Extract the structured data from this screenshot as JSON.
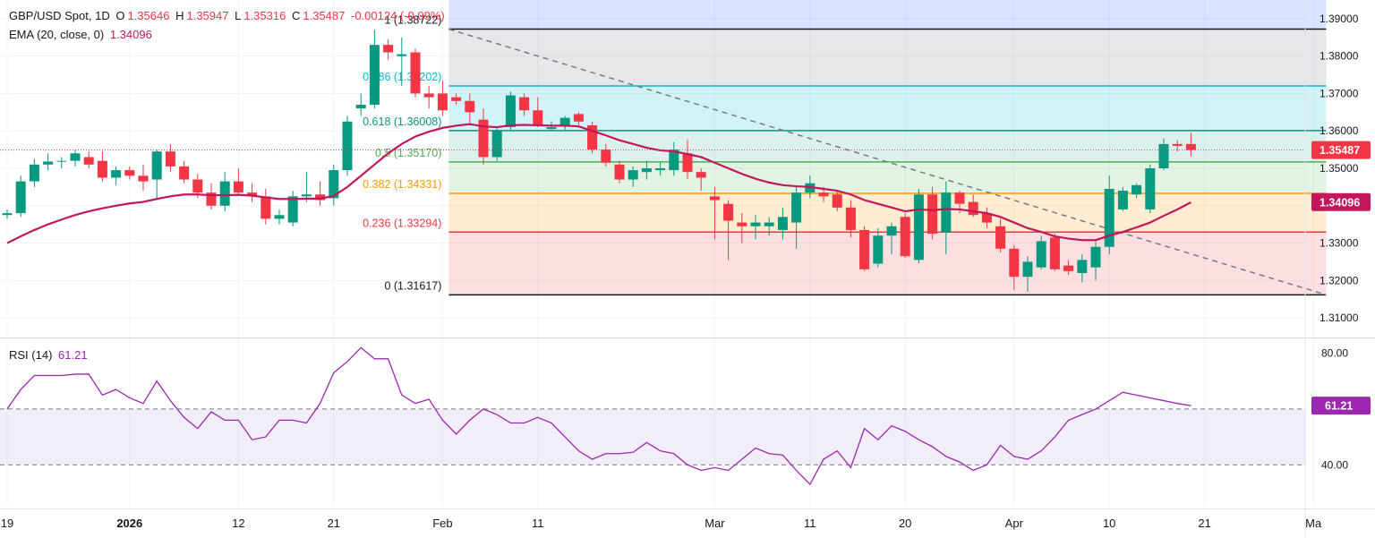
{
  "header": {
    "symbol": "GBP/USD Spot, 1D",
    "open_label": "O",
    "open": "1.35646",
    "high_label": "H",
    "high": "1.35947",
    "low_label": "L",
    "low": "1.35316",
    "close_label": "C",
    "close": "1.35487",
    "change": "-0.00124 (-0.09%)"
  },
  "ema_legend": {
    "label": "EMA (20, close, 0)",
    "value": "1.34096"
  },
  "rsi_legend": {
    "label": "RSI (14)",
    "value": "61.21"
  },
  "colors": {
    "up": "#089981",
    "down": "#f23645",
    "ema": "#c2185b",
    "rsi": "#9c27b0",
    "grid": "#f0f3fa",
    "fib_0": "#131722",
    "fib_236": "#f23645",
    "fib_382": "#ff9800",
    "fib_5": "#4caf50",
    "fib_618": "#089981",
    "fib_786": "#00bcd4",
    "fib_1": "#131722"
  },
  "chart_data": [
    {
      "type": "candlestick",
      "name": "price",
      "ylim": [
        1.305,
        1.395
      ],
      "yticks": [
        "1.39000",
        "1.38000",
        "1.37000",
        "1.36000",
        "1.35000",
        "1.34000",
        "1.33000",
        "1.32000",
        "1.31000"
      ],
      "ytick_values": [
        1.39,
        1.38,
        1.37,
        1.36,
        1.35,
        1.34,
        1.33,
        1.32,
        1.31
      ],
      "xticks": [
        {
          "label": "19",
          "i": 0
        },
        {
          "label": "2026",
          "i": 9
        },
        {
          "label": "12",
          "i": 17
        },
        {
          "label": "21",
          "i": 24
        },
        {
          "label": "Feb",
          "i": 32
        },
        {
          "label": "11",
          "i": 39
        },
        {
          "label": "Mar",
          "i": 52
        },
        {
          "label": "11",
          "i": 59
        },
        {
          "label": "20",
          "i": 66
        },
        {
          "label": "Apr",
          "i": 74
        },
        {
          "label": "10",
          "i": 81
        },
        {
          "label": "21",
          "i": 88
        },
        {
          "label": "Ma",
          "i": 96
        }
      ],
      "price_labels": {
        "close": {
          "label": "1.35487",
          "value": 1.35487
        },
        "ema": {
          "label": "1.34096",
          "value": 1.34096
        }
      },
      "candles": [
        [
          1.3375,
          1.339,
          1.3365,
          1.338
        ],
        [
          1.338,
          1.348,
          1.337,
          1.3465
        ],
        [
          1.3465,
          1.3525,
          1.345,
          1.351
        ],
        [
          1.351,
          1.354,
          1.3495,
          1.3518
        ],
        [
          1.3518,
          1.353,
          1.35,
          1.352
        ],
        [
          1.352,
          1.355,
          1.3505,
          1.354
        ],
        [
          1.353,
          1.3545,
          1.35,
          1.351
        ],
        [
          1.352,
          1.3545,
          1.3465,
          1.3475
        ],
        [
          1.3475,
          1.3505,
          1.3455,
          1.3495
        ],
        [
          1.3495,
          1.3505,
          1.347,
          1.348
        ],
        [
          1.348,
          1.351,
          1.344,
          1.3465
        ],
        [
          1.347,
          1.355,
          1.342,
          1.3545
        ],
        [
          1.3545,
          1.3565,
          1.349,
          1.3505
        ],
        [
          1.3505,
          1.352,
          1.346,
          1.347
        ],
        [
          1.347,
          1.3485,
          1.342,
          1.3435
        ],
        [
          1.3435,
          1.346,
          1.339,
          1.34
        ],
        [
          1.34,
          1.349,
          1.3385,
          1.3465
        ],
        [
          1.3465,
          1.35,
          1.343,
          1.3435
        ],
        [
          1.3435,
          1.346,
          1.341,
          1.3425
        ],
        [
          1.3425,
          1.3445,
          1.335,
          1.3365
        ],
        [
          1.3365,
          1.339,
          1.335,
          1.3375
        ],
        [
          1.3355,
          1.344,
          1.3345,
          1.3425
        ],
        [
          1.3425,
          1.349,
          1.341,
          1.343
        ],
        [
          1.343,
          1.3465,
          1.34,
          1.3415
        ],
        [
          1.342,
          1.351,
          1.34,
          1.3495
        ],
        [
          1.3495,
          1.364,
          1.348,
          1.3625
        ],
        [
          1.366,
          1.37,
          1.364,
          1.367
        ],
        [
          1.367,
          1.387,
          1.366,
          1.383
        ],
        [
          1.383,
          1.3845,
          1.379,
          1.381
        ],
        [
          1.38,
          1.385,
          1.372,
          1.3805
        ],
        [
          1.381,
          1.382,
          1.369,
          1.37
        ],
        [
          1.37,
          1.372,
          1.366,
          1.369
        ],
        [
          1.37,
          1.3735,
          1.364,
          1.3655
        ],
        [
          1.369,
          1.37,
          1.367,
          1.368
        ],
        [
          1.368,
          1.37,
          1.362,
          1.365
        ],
        [
          1.363,
          1.366,
          1.351,
          1.353
        ],
        [
          1.353,
          1.361,
          1.352,
          1.36
        ],
        [
          1.361,
          1.3705,
          1.36,
          1.3695
        ],
        [
          1.369,
          1.37,
          1.364,
          1.3655
        ],
        [
          1.3655,
          1.369,
          1.361,
          1.3615
        ],
        [
          1.3605,
          1.3625,
          1.36,
          1.361
        ],
        [
          1.3615,
          1.364,
          1.36,
          1.3635
        ],
        [
          1.3645,
          1.365,
          1.361,
          1.3625
        ],
        [
          1.3615,
          1.3625,
          1.354,
          1.355
        ],
        [
          1.355,
          1.3565,
          1.3505,
          1.3515
        ],
        [
          1.351,
          1.352,
          1.346,
          1.347
        ],
        [
          1.347,
          1.3505,
          1.345,
          1.3495
        ],
        [
          1.349,
          1.352,
          1.347,
          1.35
        ],
        [
          1.3495,
          1.3515,
          1.348,
          1.35
        ],
        [
          1.3495,
          1.357,
          1.348,
          1.355
        ],
        [
          1.354,
          1.3575,
          1.347,
          1.349
        ],
        [
          1.349,
          1.35,
          1.344,
          1.3475
        ],
        [
          1.3425,
          1.345,
          1.331,
          1.3415
        ],
        [
          1.3405,
          1.3415,
          1.3255,
          1.336
        ],
        [
          1.3355,
          1.338,
          1.33,
          1.3345
        ],
        [
          1.3345,
          1.3375,
          1.331,
          1.3355
        ],
        [
          1.3345,
          1.337,
          1.332,
          1.3355
        ],
        [
          1.3335,
          1.3395,
          1.331,
          1.337
        ],
        [
          1.3355,
          1.345,
          1.3285,
          1.3435
        ],
        [
          1.3435,
          1.348,
          1.342,
          1.346
        ],
        [
          1.3435,
          1.345,
          1.341,
          1.3425
        ],
        [
          1.343,
          1.344,
          1.3385,
          1.3395
        ],
        [
          1.3395,
          1.3415,
          1.3315,
          1.3335
        ],
        [
          1.3335,
          1.3345,
          1.3225,
          1.323
        ],
        [
          1.3245,
          1.334,
          1.3235,
          1.332
        ],
        [
          1.332,
          1.3355,
          1.327,
          1.3345
        ],
        [
          1.337,
          1.338,
          1.326,
          1.3265
        ],
        [
          1.3255,
          1.3445,
          1.3245,
          1.343
        ],
        [
          1.343,
          1.345,
          1.331,
          1.3325
        ],
        [
          1.333,
          1.3465,
          1.327,
          1.3435
        ],
        [
          1.3435,
          1.344,
          1.338,
          1.3405
        ],
        [
          1.341,
          1.343,
          1.337,
          1.3375
        ],
        [
          1.338,
          1.3395,
          1.334,
          1.3355
        ],
        [
          1.3345,
          1.3365,
          1.3275,
          1.3285
        ],
        [
          1.3285,
          1.3295,
          1.3175,
          1.321
        ],
        [
          1.321,
          1.3265,
          1.317,
          1.325
        ],
        [
          1.3235,
          1.332,
          1.323,
          1.3305
        ],
        [
          1.3315,
          1.3325,
          1.3225,
          1.323
        ],
        [
          1.324,
          1.3255,
          1.3215,
          1.3225
        ],
        [
          1.322,
          1.327,
          1.3195,
          1.3255
        ],
        [
          1.3235,
          1.3305,
          1.32,
          1.329
        ],
        [
          1.329,
          1.348,
          1.327,
          1.3445
        ],
        [
          1.339,
          1.345,
          1.3385,
          1.344
        ],
        [
          1.343,
          1.346,
          1.342,
          1.3455
        ],
        [
          1.339,
          1.351,
          1.338,
          1.35
        ],
        [
          1.35,
          1.358,
          1.3495,
          1.3565
        ],
        [
          1.3565,
          1.3575,
          1.3545,
          1.356
        ],
        [
          1.3565,
          1.3595,
          1.3532,
          1.3549
        ]
      ],
      "ema": [
        1.33,
        1.3318,
        1.3335,
        1.335,
        1.3363,
        1.3375,
        1.3385,
        1.3393,
        1.34,
        1.3406,
        1.341,
        1.3418,
        1.3425,
        1.343,
        1.343,
        1.3428,
        1.3428,
        1.3429,
        1.3427,
        1.3422,
        1.3418,
        1.3418,
        1.3419,
        1.3419,
        1.3426,
        1.345,
        1.348,
        1.351,
        1.354,
        1.3565,
        1.3585,
        1.3598,
        1.3608,
        1.3614,
        1.3618,
        1.3612,
        1.361,
        1.3615,
        1.3616,
        1.3615,
        1.3614,
        1.3614,
        1.3612,
        1.36,
        1.3588,
        1.3575,
        1.3565,
        1.3555,
        1.3548,
        1.3545,
        1.3538,
        1.353,
        1.3515,
        1.35,
        1.3485,
        1.3472,
        1.3462,
        1.3455,
        1.3452,
        1.345,
        1.3445,
        1.344,
        1.343,
        1.3415,
        1.3405,
        1.3395,
        1.3385,
        1.339,
        1.3388,
        1.3391,
        1.339,
        1.3385,
        1.338,
        1.337,
        1.3355,
        1.334,
        1.333,
        1.3318,
        1.3312,
        1.3308,
        1.3308,
        1.332,
        1.333,
        1.3342,
        1.3355,
        1.3373,
        1.339,
        1.3409
      ],
      "fib": [
        {
          "ratio": "0",
          "level": "1.31617",
          "value": 1.31617
        },
        {
          "ratio": "0.236",
          "level": "1.33294",
          "value": 1.33294
        },
        {
          "ratio": "0.382",
          "level": "1.34331",
          "value": 1.34331
        },
        {
          "ratio": "0.5",
          "level": "1.35170",
          "value": 1.3517
        },
        {
          "ratio": "0.618",
          "level": "1.36008",
          "value": 1.36008
        },
        {
          "ratio": "0.786",
          "level": "1.37202",
          "value": 1.37202
        },
        {
          "ratio": "1",
          "level": "1.38722",
          "value": 1.38722
        }
      ],
      "fib_range_i": [
        32,
        97
      ],
      "trendline": [
        [
          32,
          1.38722
        ],
        [
          97,
          1.31617
        ]
      ]
    },
    {
      "type": "line",
      "name": "RSI (14)",
      "ylim": [
        25,
        85
      ],
      "yticks": [
        "80.00",
        "40.00"
      ],
      "ytick_values": [
        80,
        40
      ],
      "bands": [
        40,
        60
      ],
      "current": {
        "label": "61.21",
        "value": 61.21
      },
      "values": [
        60,
        67,
        72,
        72,
        72,
        72.5,
        72.5,
        65,
        67,
        64,
        62,
        70,
        63,
        57,
        53,
        59,
        56,
        56,
        49,
        50,
        56,
        56,
        55,
        62,
        73,
        77,
        82,
        78,
        78,
        65,
        62,
        63.5,
        56,
        51,
        56,
        60,
        58,
        55,
        55,
        57,
        55,
        50,
        45,
        42,
        44,
        44,
        44.5,
        48,
        45,
        44,
        40,
        38,
        39,
        38,
        42,
        46,
        44,
        43.5,
        38,
        33,
        42,
        45,
        39,
        53,
        49,
        54,
        52,
        49,
        46.5,
        43,
        41,
        38,
        40,
        47,
        43,
        42,
        45,
        50,
        56,
        58,
        60,
        63,
        66,
        65,
        64,
        63,
        62,
        61.2
      ]
    }
  ]
}
